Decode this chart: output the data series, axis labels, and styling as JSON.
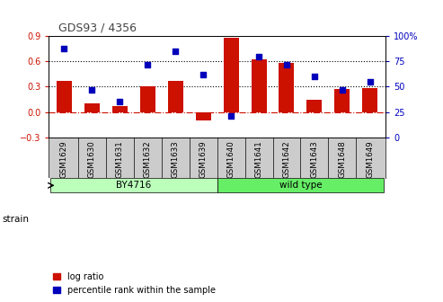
{
  "title": "GDS93 / 4356",
  "samples": [
    "GSM1629",
    "GSM1630",
    "GSM1631",
    "GSM1632",
    "GSM1633",
    "GSM1639",
    "GSM1640",
    "GSM1641",
    "GSM1642",
    "GSM1643",
    "GSM1648",
    "GSM1649"
  ],
  "log_ratio": [
    0.37,
    0.1,
    0.07,
    0.3,
    0.37,
    -0.1,
    0.88,
    0.63,
    0.58,
    0.15,
    0.27,
    0.28
  ],
  "percentile": [
    88,
    47,
    35,
    72,
    85,
    62,
    21,
    80,
    72,
    60,
    47,
    55
  ],
  "strain_groups": [
    {
      "label": "BY4716",
      "start": 0,
      "end": 5,
      "color": "#bbffbb"
    },
    {
      "label": "wild type",
      "start": 6,
      "end": 11,
      "color": "#66ee66"
    }
  ],
  "bar_color": "#cc1100",
  "dot_color": "#0000bb",
  "ylim_left": [
    -0.3,
    0.9
  ],
  "ylim_right": [
    0,
    100
  ],
  "yticks_left": [
    -0.3,
    0.0,
    0.3,
    0.6,
    0.9
  ],
  "yticks_right": [
    0,
    25,
    50,
    75,
    100
  ],
  "hline_y": [
    0.3,
    0.6
  ],
  "zero_line_y": 0.0,
  "background_color": "#ffffff",
  "title_color": "#444444",
  "left_tick_color": "#cc1100",
  "right_tick_color": "#0000bb",
  "strain_label": "strain",
  "xlabel_bg": "#cccccc",
  "bar_width": 0.55
}
